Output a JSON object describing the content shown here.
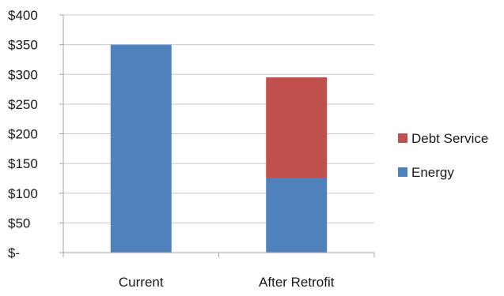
{
  "chart_data": {
    "type": "bar",
    "stacked": true,
    "categories": [
      "Current",
      "After Retrofit"
    ],
    "series": [
      {
        "name": "Energy",
        "color": "#4f81bd",
        "values": [
          350,
          125
        ]
      },
      {
        "name": "Debt Service",
        "color": "#c0504d",
        "values": [
          0,
          170
        ]
      }
    ],
    "y_ticks": [
      {
        "value": 0,
        "label": "$-"
      },
      {
        "value": 50,
        "label": "$50"
      },
      {
        "value": 100,
        "label": "$100"
      },
      {
        "value": 150,
        "label": "$150"
      },
      {
        "value": 200,
        "label": "$200"
      },
      {
        "value": 250,
        "label": "$250"
      },
      {
        "value": 300,
        "label": "$300"
      },
      {
        "value": 350,
        "label": "$350"
      },
      {
        "value": 400,
        "label": "$400"
      }
    ],
    "ylim": [
      0,
      400
    ],
    "grid": true,
    "legend_position": "right",
    "legend_order": [
      "Debt Service",
      "Energy"
    ],
    "gridline_color": "#c8c8c8",
    "axis_color": "#a6a6a6"
  }
}
